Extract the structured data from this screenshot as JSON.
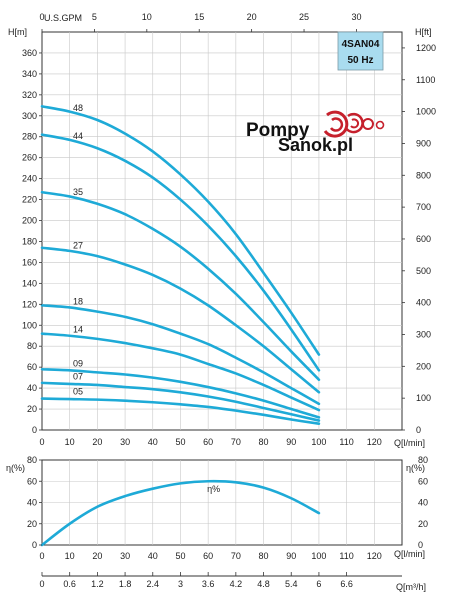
{
  "logo": {
    "line1": "Pompy",
    "line2": "Sanok.pl"
  },
  "model_box": {
    "model": "4SAN04",
    "freq": "50 Hz",
    "fill": "#a9dcef"
  },
  "curve_color": "#1eaad7",
  "axes": {
    "top_label": "U.S.GPM",
    "top_ticks": [
      "0",
      "5",
      "10",
      "15",
      "20",
      "25",
      "30"
    ],
    "left_label": "H[m]",
    "right_label": "H[ft]",
    "eff_left_label": "η(%)",
    "eff_right_label": "η(%)",
    "q_lmin_label": "Q[l/min]",
    "q_m3h_label": "Q[m³/h]",
    "lmin_ticks": [
      "0",
      "10",
      "20",
      "30",
      "40",
      "50",
      "60",
      "70",
      "80",
      "90",
      "100",
      "110",
      "120"
    ],
    "m3h_ticks": [
      "0",
      "0.6",
      "1.2",
      "1.8",
      "2.4",
      "3",
      "3.6",
      "4.2",
      "4.8",
      "5.4",
      "6",
      "6.6"
    ]
  },
  "chart_data": [
    {
      "type": "line",
      "title": "",
      "xlabel": "Q[l/min]",
      "ylabel": "H[m]",
      "y2label": "H[ft]",
      "xlim": [
        0,
        130
      ],
      "ylim": [
        0,
        380
      ],
      "y2lim": [
        0,
        1250
      ],
      "x_ticks": [
        0,
        10,
        20,
        30,
        40,
        50,
        60,
        70,
        80,
        90,
        100,
        110,
        120
      ],
      "y_ticks": [
        0,
        20,
        40,
        60,
        80,
        100,
        120,
        140,
        160,
        180,
        200,
        220,
        240,
        260,
        280,
        300,
        320,
        340,
        360
      ],
      "y2_ticks": [
        0,
        100,
        200,
        300,
        400,
        500,
        600,
        700,
        800,
        900,
        1000,
        1100,
        1200
      ],
      "top_axis": {
        "label": "U.S.GPM",
        "ticks": [
          0,
          5,
          10,
          15,
          20,
          25,
          30
        ]
      },
      "grid": true,
      "x": [
        0,
        10,
        20,
        30,
        40,
        50,
        60,
        70,
        80,
        90,
        100
      ],
      "series": [
        {
          "name": "48",
          "values": [
            309,
            304,
            296,
            283,
            266,
            244,
            218,
            187,
            150,
            112,
            72
          ]
        },
        {
          "name": "44",
          "values": [
            282,
            277,
            269,
            257,
            241,
            220,
            195,
            166,
            133,
            96,
            57
          ]
        },
        {
          "name": "35",
          "values": [
            227,
            223,
            216,
            206,
            192,
            175,
            154,
            130,
            103,
            75,
            48
          ]
        },
        {
          "name": "27",
          "values": [
            174,
            171,
            166,
            158,
            148,
            135,
            119,
            100,
            80,
            58,
            36
          ]
        },
        {
          "name": "18",
          "values": [
            119,
            117,
            113,
            108,
            101,
            92,
            82,
            69,
            55,
            40,
            25
          ]
        },
        {
          "name": "14",
          "values": [
            92,
            90,
            87,
            83,
            78,
            72,
            63,
            54,
            43,
            31,
            19
          ]
        },
        {
          "name": "09",
          "values": [
            58,
            57,
            55,
            53,
            50,
            46,
            41,
            35,
            28,
            20,
            12
          ]
        },
        {
          "name": "07",
          "values": [
            45,
            44,
            43,
            41,
            39,
            36,
            32,
            27,
            21,
            15,
            9
          ]
        },
        {
          "name": "05",
          "values": [
            30,
            29.5,
            29,
            28,
            26.5,
            24.5,
            22,
            18.5,
            14.5,
            10,
            6
          ]
        }
      ]
    },
    {
      "type": "line",
      "title": "",
      "xlabel": "Q[l/min]",
      "ylabel": "η(%)",
      "y2label": "η(%)",
      "x2label": "Q[m³/h]",
      "xlim": [
        0,
        130
      ],
      "ylim": [
        0,
        80
      ],
      "x_ticks": [
        0,
        10,
        20,
        30,
        40,
        50,
        60,
        70,
        80,
        90,
        100,
        110,
        120
      ],
      "y_ticks": [
        0,
        20,
        40,
        60,
        80
      ],
      "x2_ticks": [
        0,
        0.6,
        1.2,
        1.8,
        2.4,
        3,
        3.6,
        4.2,
        4.8,
        5.4,
        6,
        6.6
      ],
      "grid": true,
      "x": [
        0,
        10,
        20,
        30,
        40,
        50,
        60,
        70,
        80,
        90,
        100
      ],
      "series": [
        {
          "name": "η%",
          "values": [
            0,
            20,
            36,
            46,
            53,
            58,
            60,
            59,
            54,
            44,
            30
          ]
        }
      ]
    }
  ]
}
